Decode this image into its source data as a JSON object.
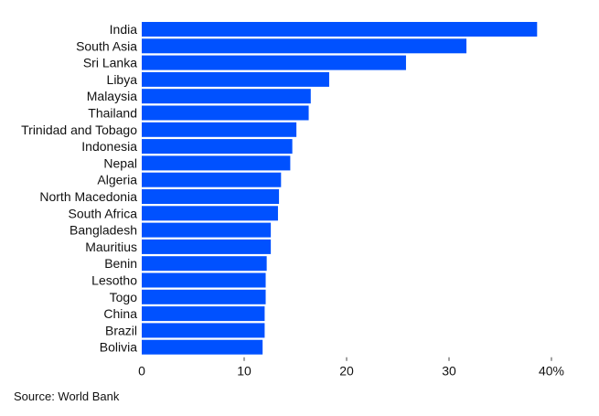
{
  "chart_data": {
    "type": "bar",
    "orientation": "horizontal",
    "categories": [
      "India",
      "South Asia",
      "Sri Lanka",
      "Libya",
      "Malaysia",
      "Thailand",
      "Trinidad and Tobago",
      "Indonesia",
      "Nepal",
      "Algeria",
      "North Macedonia",
      "South Africa",
      "Bangladesh",
      "Mauritius",
      "Benin",
      "Lesotho",
      "Togo",
      "China",
      "Brazil",
      "Bolivia"
    ],
    "values": [
      38.6,
      31.7,
      25.8,
      18.3,
      16.5,
      16.3,
      15.1,
      14.7,
      14.5,
      13.6,
      13.4,
      13.3,
      12.6,
      12.6,
      12.2,
      12.1,
      12.1,
      12.0,
      12.0,
      11.8
    ],
    "xlim": [
      0,
      40
    ],
    "xticks": [
      {
        "value": 0,
        "label": "0"
      },
      {
        "value": 10,
        "label": "10"
      },
      {
        "value": 20,
        "label": "20"
      },
      {
        "value": 30,
        "label": "30"
      },
      {
        "value": 40,
        "label": "40%"
      }
    ],
    "bar_color": "#0051ff",
    "grid": false,
    "legend": "none"
  },
  "source": "Source: World Bank"
}
